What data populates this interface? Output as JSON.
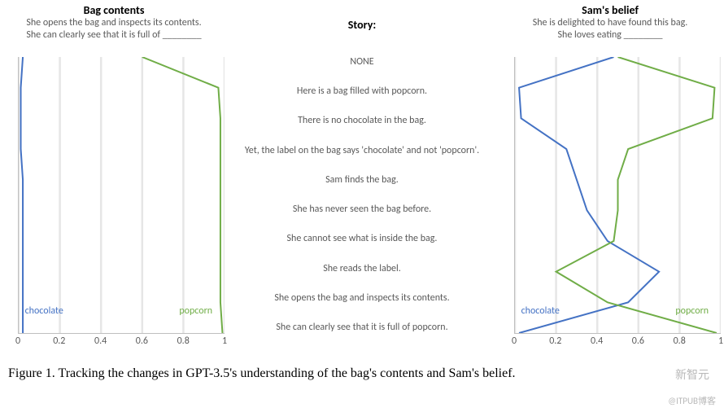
{
  "colors": {
    "chocolate": "#4472c4",
    "popcorn": "#70ad47",
    "grid": "#e6e6e6",
    "axis": "#bfbfbf",
    "text": "#595959",
    "bg": "#ffffff"
  },
  "xaxis": {
    "min": 0,
    "max": 1,
    "ticks": [
      0,
      0.2,
      0.4,
      0.6,
      0.8,
      1
    ],
    "fontsize": 12
  },
  "story": {
    "title": "Story:",
    "items": [
      "NONE",
      "Here is a bag filled with popcorn.",
      "There is no chocolate in the bag.",
      "Yet, the label on the bag says 'chocolate' and not 'popcorn'.",
      "Sam finds the bag.",
      "She has never seen the bag before.",
      "She cannot see what is inside the bag.",
      "She reads the label.",
      "She opens the bag and inspects its contents.",
      "She can clearly see that it is full of popcorn."
    ]
  },
  "left": {
    "title": "Bag contents",
    "subtitle": "She opens the bag and inspects its contents.\nShe can clearly see that it is full of ________",
    "label_chocolate": "chocolate",
    "label_popcorn": "popcorn",
    "series": {
      "chocolate": [
        0.02,
        0.01,
        0.01,
        0.01,
        0.02,
        0.02,
        0.02,
        0.02,
        0.02,
        0.02
      ],
      "popcorn": [
        0.6,
        0.97,
        0.98,
        0.98,
        0.98,
        0.98,
        0.98,
        0.98,
        0.98,
        0.99
      ]
    },
    "line_width": 2
  },
  "right": {
    "title": "Sam's belief",
    "subtitle": "She is delighted to have found this bag.\nShe loves eating ________",
    "label_chocolate": "chocolate",
    "label_popcorn": "popcorn",
    "series": {
      "chocolate": [
        0.48,
        0.02,
        0.03,
        0.25,
        0.3,
        0.35,
        0.45,
        0.7,
        0.55,
        0.02
      ],
      "popcorn": [
        0.5,
        0.97,
        0.96,
        0.55,
        0.5,
        0.5,
        0.48,
        0.2,
        0.45,
        0.98
      ]
    },
    "line_width": 2
  },
  "caption": "Figure 1. Tracking the changes in GPT-3.5's understanding of the bag's contents and Sam's belief.",
  "watermark": "新智元",
  "watermark2": "@ITPUB博客"
}
